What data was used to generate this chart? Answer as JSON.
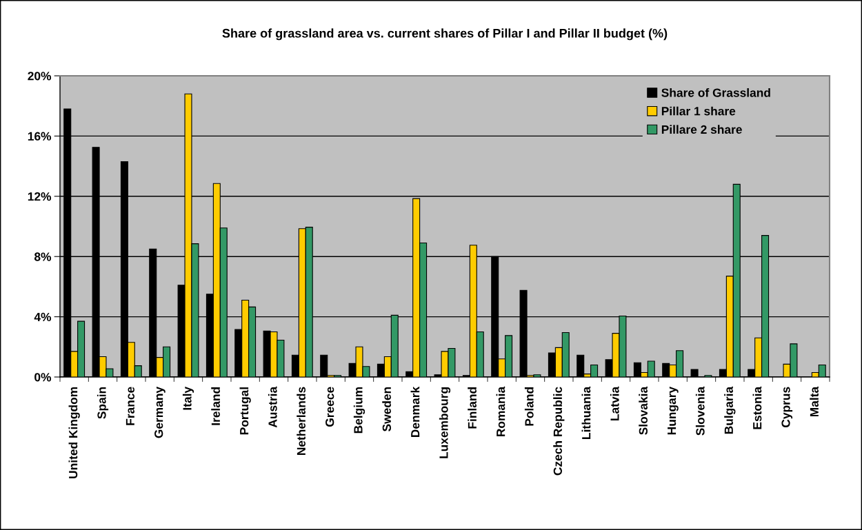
{
  "chart_data": {
    "type": "bar",
    "title": "Share of grassland area vs. current shares of Pillar I and Pillar II budget (%)",
    "categories": [
      "United Kingdom",
      "Spain",
      "France",
      "Germany",
      "Italy",
      "Ireland",
      "Portugal",
      "Austria",
      "Netherlands",
      "Greece",
      "Belgium",
      "Sweden",
      "Denmark",
      "Luxembourg",
      "Finland",
      "Romania",
      "Poland",
      "Czech Republic",
      "Lithuania",
      "Latvia",
      "Slovakia",
      "Hungary",
      "Slovenia",
      "Bulgaria",
      "Estonia",
      "Cyprus",
      "Malta"
    ],
    "series": [
      {
        "name": "Share of Grassland",
        "color": "#000000",
        "values": [
          17.8,
          15.25,
          14.3,
          8.5,
          6.1,
          5.5,
          3.15,
          3.05,
          1.45,
          1.45,
          0.9,
          0.85,
          0.35,
          0.15,
          0.1,
          8.0,
          5.75,
          1.6,
          1.45,
          1.15,
          0.95,
          0.9,
          0.5,
          0.5,
          0.5,
          null,
          null
        ]
      },
      {
        "name": "Pillar 1 share",
        "color": "#ffcc00",
        "values": [
          1.7,
          1.35,
          2.3,
          1.3,
          18.8,
          12.85,
          5.1,
          3.0,
          9.85,
          0.1,
          2.0,
          1.35,
          11.85,
          1.7,
          8.75,
          1.2,
          0.1,
          1.95,
          0.2,
          2.9,
          0.3,
          0.8,
          null,
          6.7,
          2.6,
          0.85,
          0.3
        ]
      },
      {
        "name": "Pillare 2 share",
        "color": "#339966",
        "values": [
          3.7,
          0.55,
          0.75,
          2.0,
          8.85,
          9.9,
          4.65,
          2.45,
          9.95,
          0.1,
          0.7,
          4.1,
          8.9,
          1.9,
          3.0,
          2.75,
          0.15,
          2.95,
          0.8,
          4.05,
          1.05,
          1.75,
          0.1,
          12.8,
          9.4,
          2.2,
          0.8
        ]
      }
    ],
    "ylim": [
      0,
      20
    ],
    "yticks": [
      {
        "value": 0,
        "label": "0%"
      },
      {
        "value": 4,
        "label": "4%"
      },
      {
        "value": 8,
        "label": "8%"
      },
      {
        "value": 12,
        "label": "12%"
      },
      {
        "value": 16,
        "label": "16%"
      },
      {
        "value": 20,
        "label": "20%"
      }
    ],
    "grid": "y",
    "legend": "top right"
  }
}
